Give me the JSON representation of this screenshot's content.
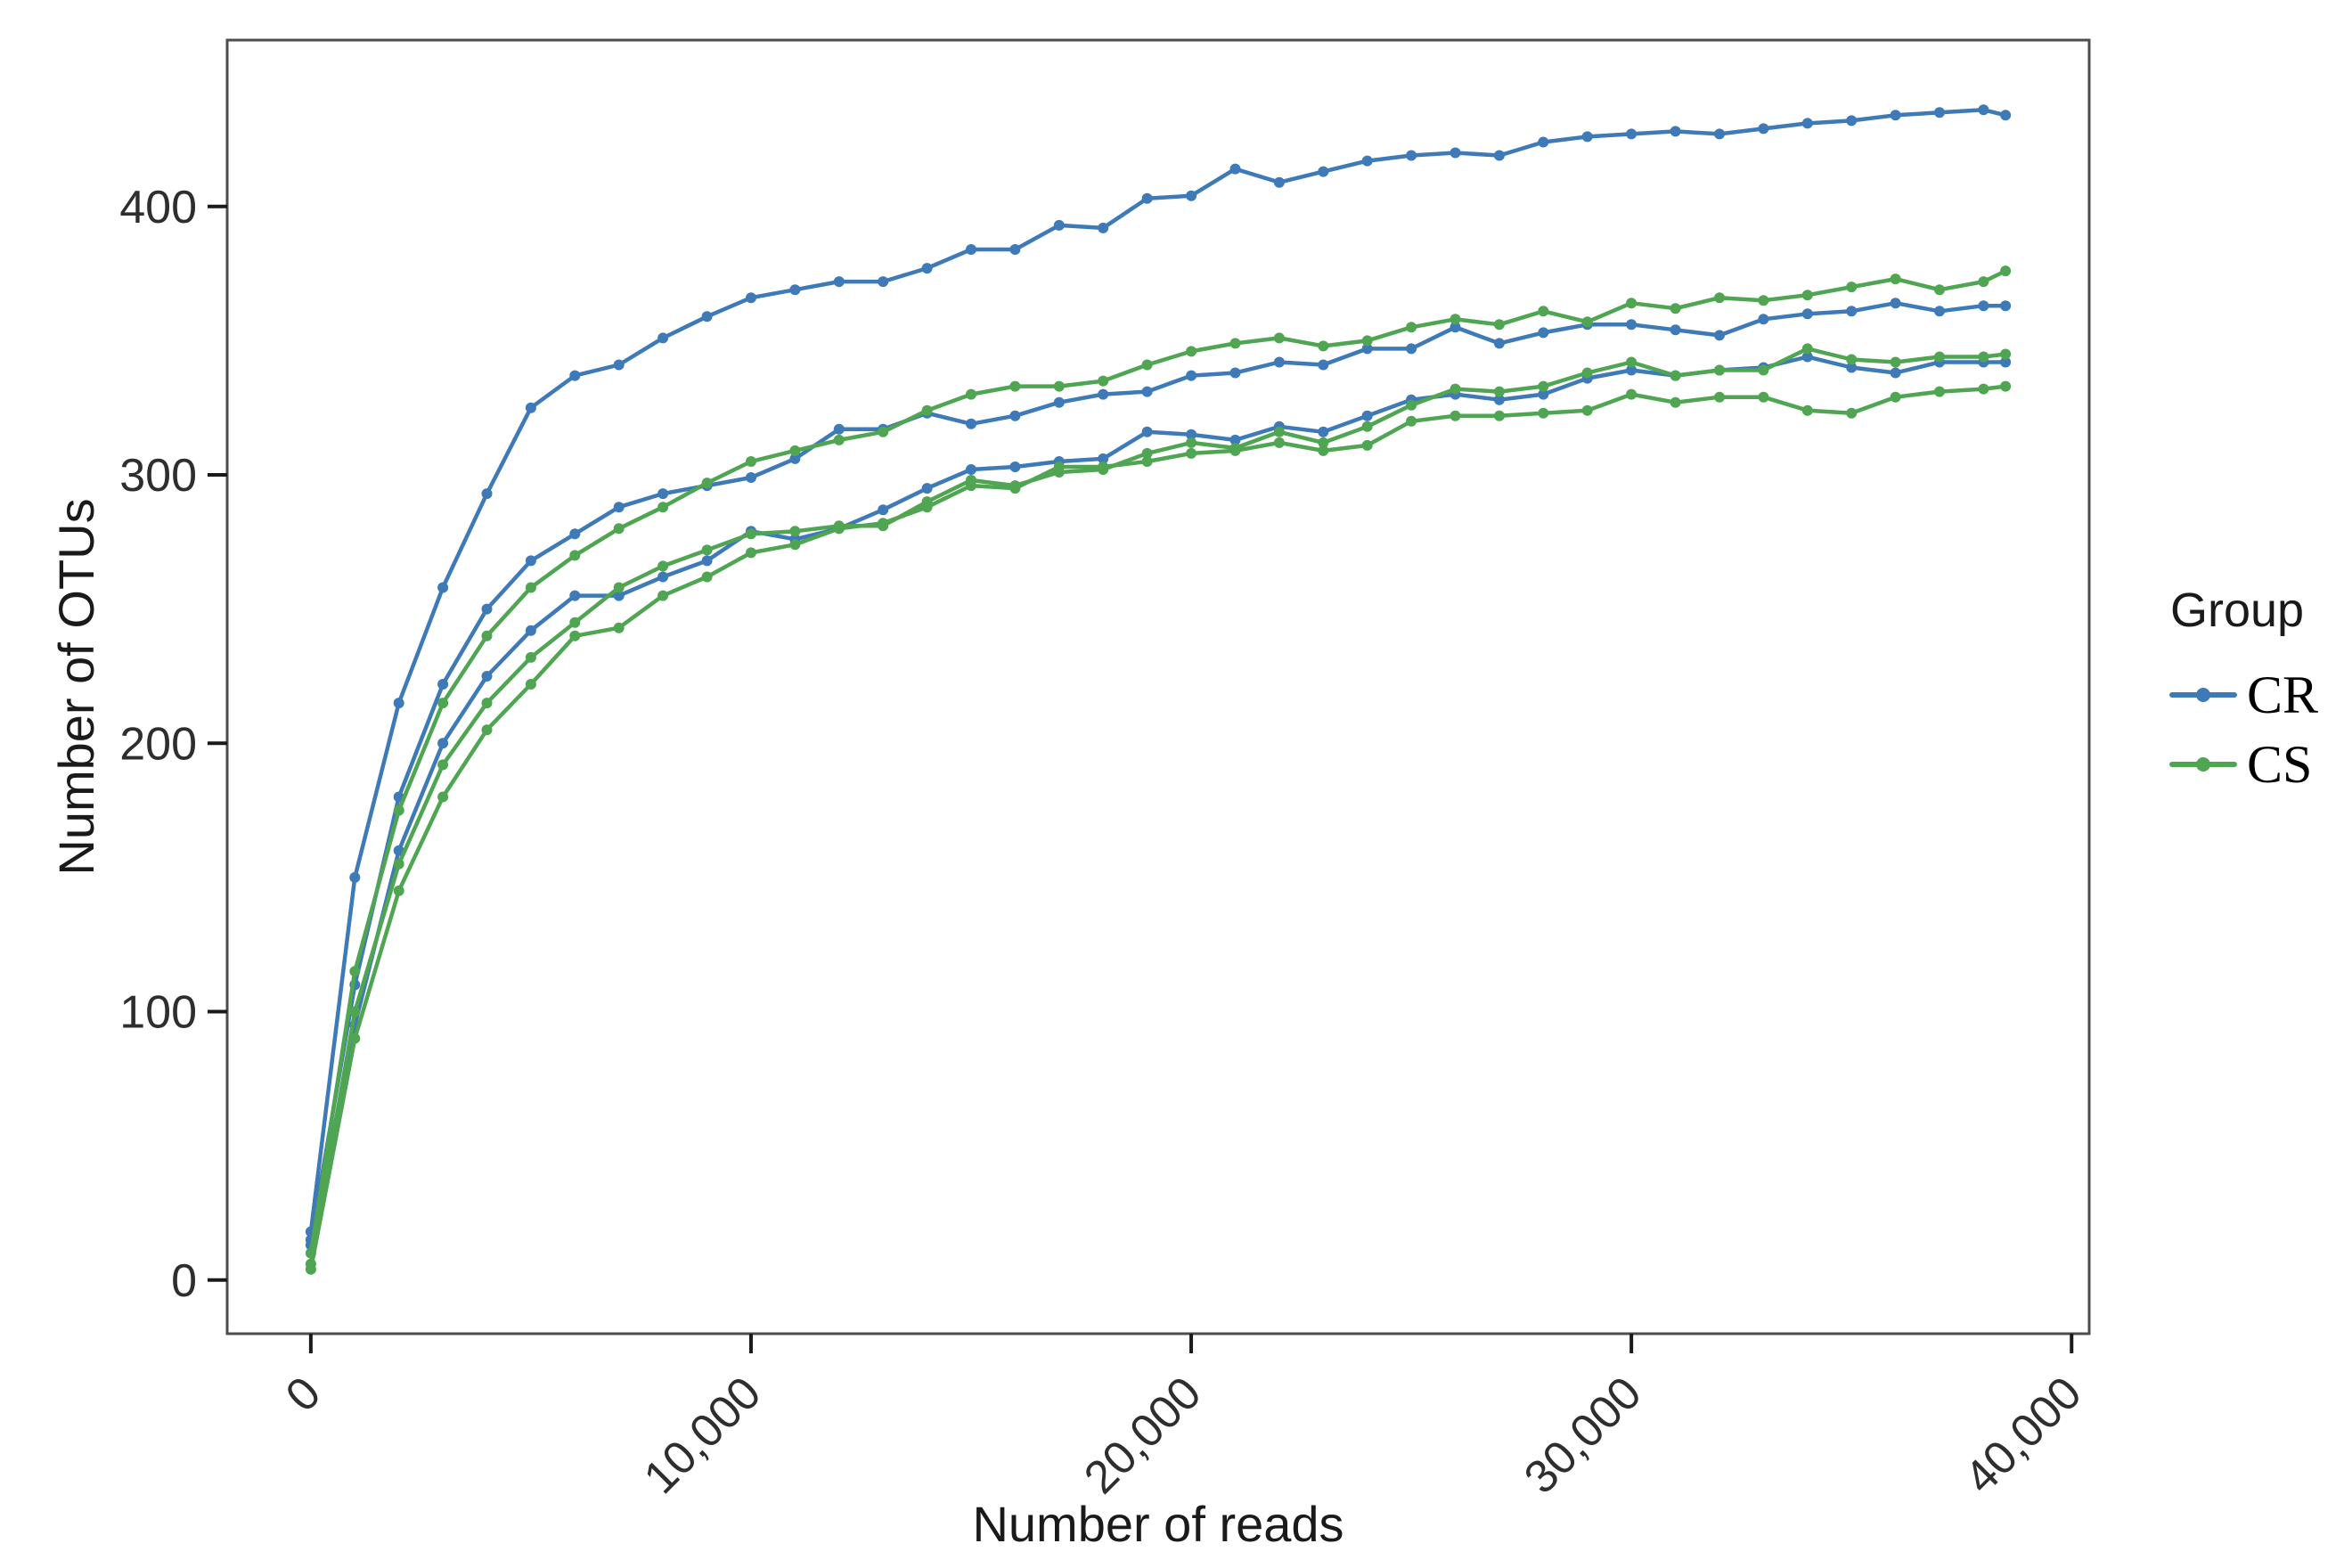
{
  "chart_data": {
    "type": "line",
    "title": "",
    "xlabel": "Number of reads",
    "ylabel": "Number of OTUs",
    "xlim": [
      -1900,
      40400
    ],
    "ylim": [
      -20,
      462
    ],
    "grid": false,
    "panel_border_color": "#4d4d4d",
    "tick_color": "#1a1a1a",
    "x_ticks": [
      {
        "value": 0,
        "label": "0"
      },
      {
        "value": 10000,
        "label": "10,000"
      },
      {
        "value": 20000,
        "label": "20,000"
      },
      {
        "value": 30000,
        "label": "30,000"
      },
      {
        "value": 40000,
        "label": "40,000"
      }
    ],
    "y_ticks": [
      {
        "value": 0,
        "label": "0"
      },
      {
        "value": 100,
        "label": "100"
      },
      {
        "value": 200,
        "label": "200"
      },
      {
        "value": 300,
        "label": "300"
      },
      {
        "value": 400,
        "label": "400"
      }
    ],
    "legend": {
      "title": "Group",
      "position": "right",
      "entries": [
        {
          "label": "CR",
          "color": "#3E79B8"
        },
        {
          "label": "CS",
          "color": "#4FA552"
        }
      ]
    },
    "series": [
      {
        "id": "CR-1",
        "group": "CR",
        "color": "#3E79B8",
        "points": [
          [
            1,
            18
          ],
          [
            1000,
            150
          ],
          [
            2000,
            215
          ],
          [
            3000,
            258
          ],
          [
            4000,
            293
          ],
          [
            5000,
            325
          ],
          [
            6000,
            337
          ],
          [
            7000,
            341
          ],
          [
            8000,
            351
          ],
          [
            9000,
            359
          ],
          [
            10000,
            366
          ],
          [
            11000,
            369
          ],
          [
            12000,
            372
          ],
          [
            13000,
            372
          ],
          [
            14000,
            377
          ],
          [
            15000,
            384
          ],
          [
            16000,
            384
          ],
          [
            17000,
            393
          ],
          [
            18000,
            392
          ],
          [
            19000,
            403
          ],
          [
            20000,
            404
          ],
          [
            21000,
            414
          ],
          [
            22000,
            409
          ],
          [
            23000,
            413
          ],
          [
            24000,
            417
          ],
          [
            25000,
            419
          ],
          [
            26000,
            420
          ],
          [
            27000,
            419
          ],
          [
            28000,
            424
          ],
          [
            29000,
            426
          ],
          [
            30000,
            427
          ],
          [
            31000,
            428
          ],
          [
            32000,
            427
          ],
          [
            33000,
            429
          ],
          [
            34000,
            431
          ],
          [
            35000,
            432
          ],
          [
            36000,
            434
          ],
          [
            37000,
            435
          ],
          [
            38000,
            436
          ],
          [
            38500,
            434
          ]
        ]
      },
      {
        "id": "CR-2",
        "group": "CR",
        "color": "#3E79B8",
        "points": [
          [
            1,
            15
          ],
          [
            1000,
            110
          ],
          [
            2000,
            180
          ],
          [
            3000,
            222
          ],
          [
            4000,
            250
          ],
          [
            5000,
            268
          ],
          [
            6000,
            278
          ],
          [
            7000,
            288
          ],
          [
            8000,
            293
          ],
          [
            9000,
            296
          ],
          [
            10000,
            299
          ],
          [
            11000,
            306
          ],
          [
            12000,
            317
          ],
          [
            13000,
            317
          ],
          [
            14000,
            323
          ],
          [
            15000,
            319
          ],
          [
            16000,
            322
          ],
          [
            17000,
            327
          ],
          [
            18000,
            330
          ],
          [
            19000,
            331
          ],
          [
            20000,
            337
          ],
          [
            21000,
            338
          ],
          [
            22000,
            342
          ],
          [
            23000,
            341
          ],
          [
            24000,
            347
          ],
          [
            25000,
            347
          ],
          [
            26000,
            355
          ],
          [
            27000,
            349
          ],
          [
            28000,
            353
          ],
          [
            29000,
            356
          ],
          [
            30000,
            356
          ],
          [
            31000,
            354
          ],
          [
            32000,
            352
          ],
          [
            33000,
            358
          ],
          [
            34000,
            360
          ],
          [
            35000,
            361
          ],
          [
            36000,
            364
          ],
          [
            37000,
            361
          ],
          [
            38000,
            363
          ],
          [
            38500,
            363
          ]
        ]
      },
      {
        "id": "CR-3",
        "group": "CR",
        "color": "#3E79B8",
        "points": [
          [
            1,
            13
          ],
          [
            1000,
            95
          ],
          [
            2000,
            160
          ],
          [
            3000,
            200
          ],
          [
            4000,
            225
          ],
          [
            5000,
            242
          ],
          [
            6000,
            255
          ],
          [
            7000,
            255
          ],
          [
            8000,
            262
          ],
          [
            9000,
            268
          ],
          [
            10000,
            279
          ],
          [
            11000,
            276
          ],
          [
            12000,
            280
          ],
          [
            13000,
            287
          ],
          [
            14000,
            295
          ],
          [
            15000,
            302
          ],
          [
            16000,
            303
          ],
          [
            17000,
            305
          ],
          [
            18000,
            306
          ],
          [
            19000,
            316
          ],
          [
            20000,
            315
          ],
          [
            21000,
            313
          ],
          [
            22000,
            318
          ],
          [
            23000,
            316
          ],
          [
            24000,
            322
          ],
          [
            25000,
            328
          ],
          [
            26000,
            330
          ],
          [
            27000,
            328
          ],
          [
            28000,
            330
          ],
          [
            29000,
            336
          ],
          [
            30000,
            339
          ],
          [
            31000,
            337
          ],
          [
            32000,
            339
          ],
          [
            33000,
            340
          ],
          [
            34000,
            344
          ],
          [
            35000,
            340
          ],
          [
            36000,
            338
          ],
          [
            37000,
            342
          ],
          [
            38000,
            342
          ],
          [
            38500,
            342
          ]
        ]
      },
      {
        "id": "CS-1",
        "group": "CS",
        "color": "#4FA552",
        "points": [
          [
            1,
            10
          ],
          [
            1000,
            115
          ],
          [
            2000,
            175
          ],
          [
            3000,
            215
          ],
          [
            4000,
            240
          ],
          [
            5000,
            258
          ],
          [
            6000,
            270
          ],
          [
            7000,
            280
          ],
          [
            8000,
            288
          ],
          [
            9000,
            297
          ],
          [
            10000,
            305
          ],
          [
            11000,
            309
          ],
          [
            12000,
            313
          ],
          [
            13000,
            316
          ],
          [
            14000,
            324
          ],
          [
            15000,
            330
          ],
          [
            16000,
            333
          ],
          [
            17000,
            333
          ],
          [
            18000,
            335
          ],
          [
            19000,
            341
          ],
          [
            20000,
            346
          ],
          [
            21000,
            349
          ],
          [
            22000,
            351
          ],
          [
            23000,
            348
          ],
          [
            24000,
            350
          ],
          [
            25000,
            355
          ],
          [
            26000,
            358
          ],
          [
            27000,
            356
          ],
          [
            28000,
            361
          ],
          [
            29000,
            357
          ],
          [
            30000,
            364
          ],
          [
            31000,
            362
          ],
          [
            32000,
            366
          ],
          [
            33000,
            365
          ],
          [
            34000,
            367
          ],
          [
            35000,
            370
          ],
          [
            36000,
            373
          ],
          [
            37000,
            369
          ],
          [
            38000,
            372
          ],
          [
            38500,
            376
          ]
        ]
      },
      {
        "id": "CS-2",
        "group": "CS",
        "color": "#4FA552",
        "points": [
          [
            1,
            6
          ],
          [
            1000,
            100
          ],
          [
            2000,
            155
          ],
          [
            3000,
            192
          ],
          [
            4000,
            215
          ],
          [
            5000,
            232
          ],
          [
            6000,
            245
          ],
          [
            7000,
            258
          ],
          [
            8000,
            266
          ],
          [
            9000,
            272
          ],
          [
            10000,
            278
          ],
          [
            11000,
            279
          ],
          [
            12000,
            281
          ],
          [
            13000,
            281
          ],
          [
            14000,
            290
          ],
          [
            15000,
            298
          ],
          [
            16000,
            296
          ],
          [
            17000,
            301
          ],
          [
            18000,
            302
          ],
          [
            19000,
            308
          ],
          [
            20000,
            312
          ],
          [
            21000,
            310
          ],
          [
            22000,
            316
          ],
          [
            23000,
            312
          ],
          [
            24000,
            318
          ],
          [
            25000,
            326
          ],
          [
            26000,
            332
          ],
          [
            27000,
            331
          ],
          [
            28000,
            333
          ],
          [
            29000,
            338
          ],
          [
            30000,
            342
          ],
          [
            31000,
            337
          ],
          [
            32000,
            339
          ],
          [
            33000,
            339
          ],
          [
            34000,
            347
          ],
          [
            35000,
            343
          ],
          [
            36000,
            342
          ],
          [
            37000,
            344
          ],
          [
            38000,
            344
          ],
          [
            38500,
            345
          ]
        ]
      },
      {
        "id": "CS-3",
        "group": "CS",
        "color": "#4FA552",
        "points": [
          [
            1,
            4
          ],
          [
            1000,
            90
          ],
          [
            2000,
            145
          ],
          [
            3000,
            180
          ],
          [
            4000,
            205
          ],
          [
            5000,
            222
          ],
          [
            6000,
            240
          ],
          [
            7000,
            243
          ],
          [
            8000,
            255
          ],
          [
            9000,
            262
          ],
          [
            10000,
            271
          ],
          [
            11000,
            274
          ],
          [
            12000,
            280
          ],
          [
            13000,
            282
          ],
          [
            14000,
            288
          ],
          [
            15000,
            296
          ],
          [
            16000,
            295
          ],
          [
            17000,
            303
          ],
          [
            18000,
            303
          ],
          [
            19000,
            305
          ],
          [
            20000,
            308
          ],
          [
            21000,
            309
          ],
          [
            22000,
            312
          ],
          [
            23000,
            309
          ],
          [
            24000,
            311
          ],
          [
            25000,
            320
          ],
          [
            26000,
            322
          ],
          [
            27000,
            322
          ],
          [
            28000,
            323
          ],
          [
            29000,
            324
          ],
          [
            30000,
            330
          ],
          [
            31000,
            327
          ],
          [
            32000,
            329
          ],
          [
            33000,
            329
          ],
          [
            34000,
            324
          ],
          [
            35000,
            323
          ],
          [
            36000,
            329
          ],
          [
            37000,
            331
          ],
          [
            38000,
            332
          ],
          [
            38500,
            333
          ]
        ]
      }
    ]
  }
}
